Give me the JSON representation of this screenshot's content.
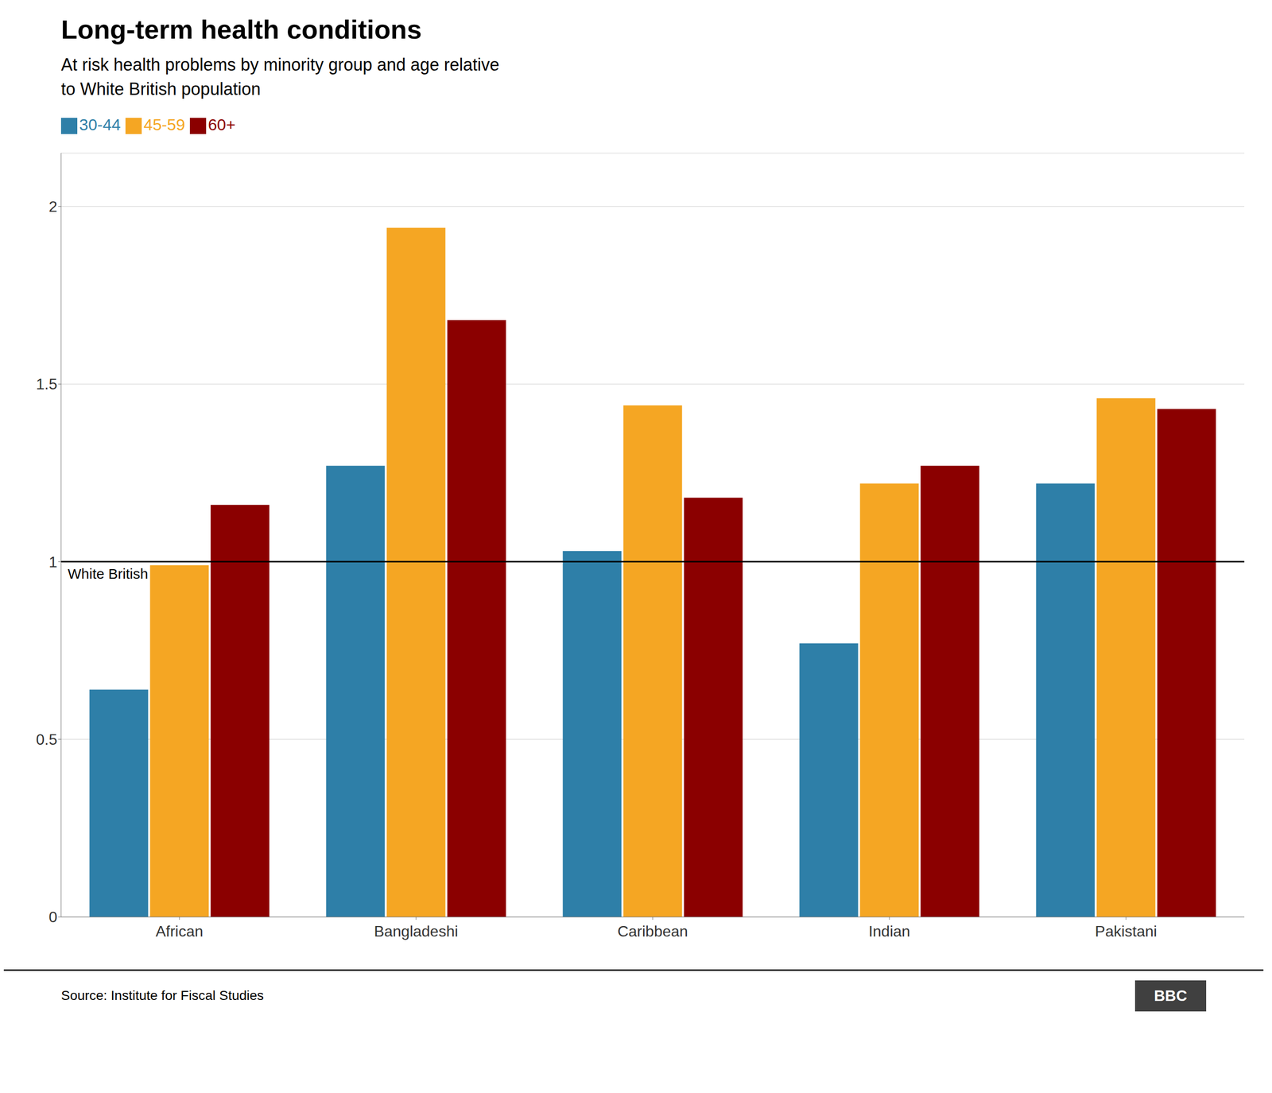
{
  "chart_data": {
    "type": "bar",
    "title": "Long-term health conditions",
    "subtitle": "At risk health problems by minority group and age relative\nto White British population",
    "categories": [
      "African",
      "Bangladeshi",
      "Caribbean",
      "Indian",
      "Pakistani"
    ],
    "series": [
      {
        "name": "30-44",
        "color": "#2E7FA8",
        "values": [
          0.64,
          1.27,
          1.03,
          0.77,
          1.22
        ]
      },
      {
        "name": "45-59",
        "color": "#F5A623",
        "values": [
          0.99,
          1.94,
          1.44,
          1.22,
          1.46
        ]
      },
      {
        "name": "60+",
        "color": "#8B0000",
        "values": [
          1.16,
          1.68,
          1.18,
          1.27,
          1.43
        ]
      }
    ],
    "ylim": [
      0,
      2.15
    ],
    "yticks": [
      0,
      0.5,
      1,
      1.5,
      2
    ],
    "grid": true,
    "legend": "top",
    "annotations": [
      {
        "text": "White British",
        "y": 1
      }
    ],
    "source": "Source: Institute for Fiscal Studies",
    "credit": "BBC"
  }
}
